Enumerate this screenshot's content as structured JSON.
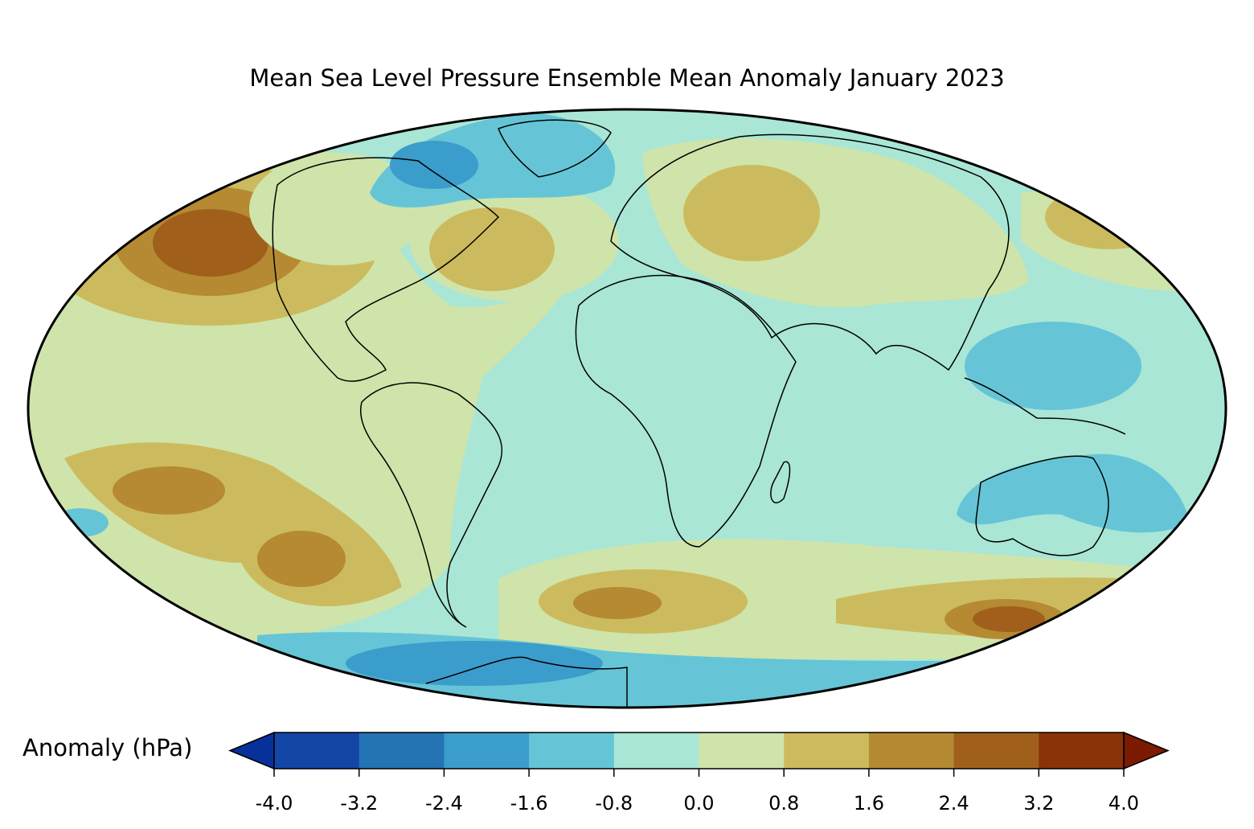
{
  "title": "Mean Sea Level Pressure Ensemble Mean Anomaly January 2023",
  "projection": "Mollweide",
  "month": "January 2023",
  "colorbar": {
    "label": "Anomaly (hPa)",
    "ticks": [
      "-4.0",
      "-3.2",
      "-2.4",
      "-1.6",
      "-0.8",
      "0.0",
      "0.8",
      "1.6",
      "2.4",
      "3.2",
      "4.0"
    ],
    "levels": [
      -4.0,
      -3.2,
      -2.4,
      -1.6,
      -0.8,
      0.0,
      0.8,
      1.6,
      2.4,
      3.2,
      4.0
    ],
    "colors": [
      "#1346a6",
      "#2373b5",
      "#3b9dcc",
      "#65c5d6",
      "#a9e6d6",
      "#cfe4aa",
      "#ccbb5e",
      "#b58a32",
      "#a0601c",
      "#8a3208"
    ],
    "under_color": "#08309a",
    "over_color": "#7d1a02",
    "extend": "both"
  },
  "anomaly_features": [
    {
      "region": "North Pacific",
      "sign": "positive",
      "max_hpa": 2.6
    },
    {
      "region": "Greenland / Labrador",
      "sign": "negative",
      "min_hpa": -1.8
    },
    {
      "region": "Eurasia",
      "sign": "positive",
      "max_hpa": 1.2
    },
    {
      "region": "Maritime Continent",
      "sign": "negative",
      "min_hpa": -1.2
    },
    {
      "region": "Australia",
      "sign": "negative",
      "min_hpa": -1.2
    },
    {
      "region": "South Pacific",
      "sign": "positive",
      "max_hpa": 2.0
    },
    {
      "region": "Southern Ocean (South Atlantic)",
      "sign": "positive",
      "max_hpa": 2.0
    },
    {
      "region": "Southern Ocean (south of Australia)",
      "sign": "positive",
      "max_hpa": 2.8
    },
    {
      "region": "Antarctica",
      "sign": "negative",
      "min_hpa": -2.0
    }
  ]
}
